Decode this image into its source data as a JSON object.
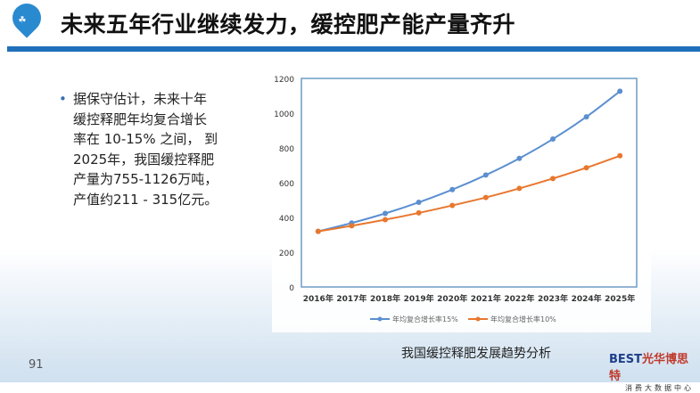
{
  "header": {
    "title": "未来五年行业继续发力，缓控肥产能产量齐升",
    "logo_icon": "farm-pin-logo"
  },
  "bullet": {
    "lines": [
      "据保守估计，未来十年",
      "缓控释肥年均复合增长",
      "率在 10-15% 之间， 到",
      "2025年，我国缓控释肥",
      "产量为755-1126万吨，",
      "产值约211 - 315亿元。"
    ]
  },
  "caption": "我国缓控释肥发展趋势分析",
  "page_number": "91",
  "brand": {
    "name": "BEST",
    "cn": "光华博思特",
    "sub": "消费大数据中心"
  },
  "chart_data": {
    "type": "line",
    "categories": [
      "2016年",
      "2017年",
      "2018年",
      "2019年",
      "2020年",
      "2021年",
      "2022年",
      "2023年",
      "2024年",
      "2025年"
    ],
    "series": [
      {
        "name": "年均复合增长率15%",
        "color": "#5b8fd0",
        "values": [
          320,
          368,
          423,
          487,
          560,
          644,
          740,
          851,
          979,
          1126
        ]
      },
      {
        "name": "年均复合增长率10%",
        "color": "#e8772e",
        "values": [
          320,
          352,
          387,
          426,
          469,
          515,
          567,
          624,
          686,
          755
        ]
      }
    ],
    "ylim": [
      0,
      1200
    ],
    "yticks": [
      "0",
      "200",
      "400",
      "600",
      "800",
      "1000",
      "1200"
    ],
    "grid": false,
    "legend": "bottom"
  }
}
